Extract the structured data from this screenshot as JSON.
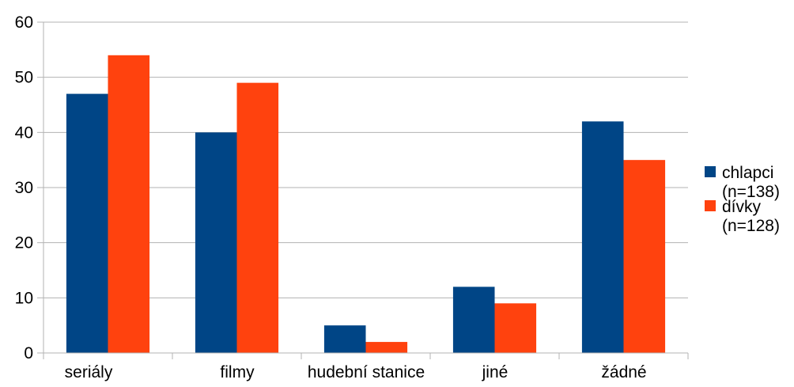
{
  "chart_data": {
    "type": "bar",
    "categories": [
      "seriály",
      "filmy",
      "hudební stanice",
      "jiné",
      "žádné"
    ],
    "series": [
      {
        "name": "chlapci (n=138)",
        "name_lines": [
          "chlapci",
          "(n=138)"
        ],
        "color": "#004586",
        "values": [
          47,
          40,
          5,
          12,
          42
        ]
      },
      {
        "name": "dívky (n=128)",
        "name_lines": [
          "dívky",
          "(n=128)"
        ],
        "color": "#ff420e",
        "values": [
          54,
          49,
          2,
          9,
          35
        ]
      }
    ],
    "title": "",
    "xlabel": "",
    "ylabel": "",
    "ylim": [
      0,
      60
    ],
    "yticks": [
      0,
      10,
      20,
      30,
      40,
      50,
      60
    ],
    "grid": true,
    "legend_position": "right"
  }
}
